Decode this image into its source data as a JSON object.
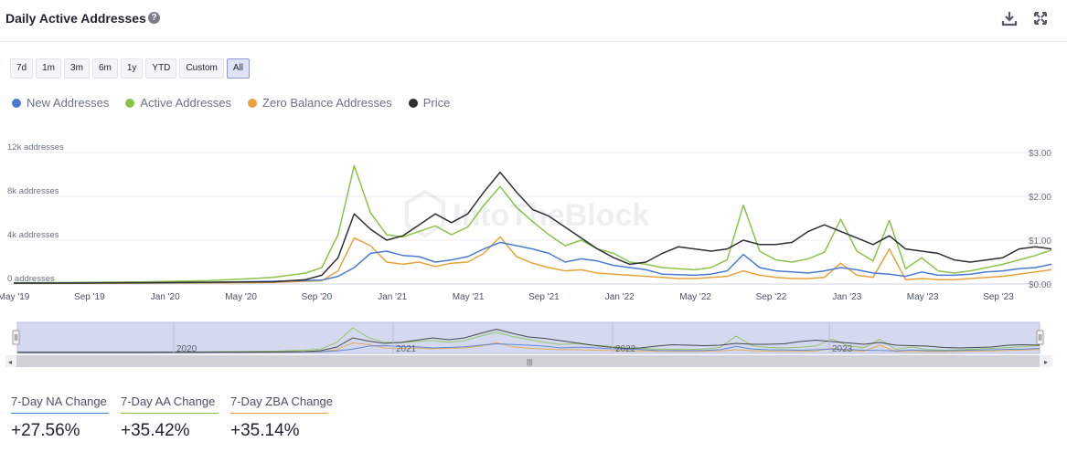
{
  "header": {
    "title": "Daily Active Addresses",
    "help_icon": "question-circle-icon",
    "download_icon": "download-icon",
    "fullscreen_icon": "expand-icon"
  },
  "range_buttons": [
    "7d",
    "1m",
    "3m",
    "6m",
    "1y",
    "YTD",
    "Custom",
    "All"
  ],
  "range_selected": "All",
  "stats": [
    {
      "label": "7-Day NA Change",
      "value": "+27.56%",
      "color": "#4a7bd4"
    },
    {
      "label": "7-Day AA Change",
      "value": "+35.42%",
      "color": "#8bc34a"
    },
    {
      "label": "7-Day ZBA Change",
      "value": "+35.14%",
      "color": "#e8a23a"
    }
  ],
  "navigator": {
    "year_labels": [
      "2020",
      "2021",
      "2022",
      "2023"
    ]
  },
  "chart_data": {
    "type": "line",
    "x_ticks": [
      "May '19",
      "Sep '19",
      "Jan '20",
      "May '20",
      "Sep '20",
      "Jan '21",
      "May '21",
      "Sep '21",
      "Jan '22",
      "May '22",
      "Sep '22",
      "Jan '23",
      "May '23",
      "Sep '23"
    ],
    "y_left": {
      "ticks": [
        "0 addresses",
        "4k addresses",
        "8k addresses",
        "12k addresses"
      ],
      "range": [
        0,
        12000
      ]
    },
    "y_right": {
      "ticks": [
        "$0.00",
        "$1.00",
        "$2.00",
        "$3.00"
      ],
      "range": [
        0,
        3
      ]
    },
    "grid": true,
    "legend_position": "top-left",
    "series": [
      {
        "name": "New Addresses",
        "color": "#4a7bd4",
        "axis": "left",
        "points": [
          [
            0,
            80
          ],
          [
            4,
            100
          ],
          [
            8,
            120
          ],
          [
            12,
            150
          ],
          [
            16,
            250
          ],
          [
            19,
            350
          ],
          [
            20,
            700
          ],
          [
            21,
            1500
          ],
          [
            22,
            2800
          ],
          [
            23,
            3000
          ],
          [
            24,
            2600
          ],
          [
            25,
            2500
          ],
          [
            26,
            2000
          ],
          [
            27,
            2200
          ],
          [
            28,
            2500
          ],
          [
            29,
            3200
          ],
          [
            30,
            3800
          ],
          [
            31,
            3500
          ],
          [
            32,
            3200
          ],
          [
            33,
            2800
          ],
          [
            34,
            2000
          ],
          [
            35,
            2300
          ],
          [
            36,
            2100
          ],
          [
            37,
            1700
          ],
          [
            38,
            1500
          ],
          [
            39,
            1300
          ],
          [
            40,
            900
          ],
          [
            41,
            850
          ],
          [
            42,
            800
          ],
          [
            43,
            900
          ],
          [
            44,
            1200
          ],
          [
            45,
            2700
          ],
          [
            46,
            1500
          ],
          [
            47,
            1200
          ],
          [
            48,
            1100
          ],
          [
            49,
            1000
          ],
          [
            50,
            1200
          ],
          [
            51,
            1500
          ],
          [
            52,
            1300
          ],
          [
            53,
            1000
          ],
          [
            54,
            900
          ],
          [
            55,
            700
          ],
          [
            56,
            1100
          ],
          [
            57,
            800
          ],
          [
            58,
            800
          ],
          [
            59,
            900
          ],
          [
            60,
            1100
          ],
          [
            61,
            1200
          ],
          [
            62,
            1400
          ],
          [
            63,
            1500
          ],
          [
            64,
            1800
          ]
        ]
      },
      {
        "name": "Active Addresses",
        "color": "#8bc34a",
        "axis": "left",
        "points": [
          [
            0,
            100
          ],
          [
            4,
            150
          ],
          [
            8,
            200
          ],
          [
            12,
            300
          ],
          [
            16,
            600
          ],
          [
            18,
            1000
          ],
          [
            19,
            1500
          ],
          [
            20,
            4500
          ],
          [
            21,
            10800
          ],
          [
            22,
            6500
          ],
          [
            23,
            4500
          ],
          [
            24,
            4300
          ],
          [
            25,
            4800
          ],
          [
            26,
            5300
          ],
          [
            27,
            4500
          ],
          [
            28,
            5200
          ],
          [
            29,
            7200
          ],
          [
            30,
            8900
          ],
          [
            31,
            7000
          ],
          [
            32,
            5700
          ],
          [
            33,
            4500
          ],
          [
            34,
            3500
          ],
          [
            35,
            4000
          ],
          [
            36,
            3200
          ],
          [
            37,
            2800
          ],
          [
            38,
            2000
          ],
          [
            39,
            1800
          ],
          [
            40,
            1500
          ],
          [
            41,
            1400
          ],
          [
            42,
            1300
          ],
          [
            43,
            1500
          ],
          [
            44,
            2200
          ],
          [
            45,
            7200
          ],
          [
            46,
            3000
          ],
          [
            47,
            2200
          ],
          [
            48,
            2000
          ],
          [
            49,
            2300
          ],
          [
            50,
            2900
          ],
          [
            51,
            5900
          ],
          [
            52,
            3000
          ],
          [
            53,
            2100
          ],
          [
            54,
            5800
          ],
          [
            55,
            1400
          ],
          [
            56,
            2400
          ],
          [
            57,
            1200
          ],
          [
            58,
            1000
          ],
          [
            59,
            1200
          ],
          [
            60,
            1500
          ],
          [
            61,
            1800
          ],
          [
            62,
            2200
          ],
          [
            63,
            2600
          ],
          [
            64,
            3100
          ]
        ]
      },
      {
        "name": "Zero Balance Addresses",
        "color": "#e8a23a",
        "axis": "left",
        "points": [
          [
            0,
            50
          ],
          [
            4,
            60
          ],
          [
            8,
            80
          ],
          [
            12,
            100
          ],
          [
            16,
            150
          ],
          [
            19,
            300
          ],
          [
            20,
            1200
          ],
          [
            21,
            4200
          ],
          [
            22,
            3500
          ],
          [
            23,
            2000
          ],
          [
            24,
            1800
          ],
          [
            25,
            2000
          ],
          [
            26,
            1600
          ],
          [
            27,
            1900
          ],
          [
            28,
            2000
          ],
          [
            29,
            2800
          ],
          [
            30,
            4300
          ],
          [
            31,
            2500
          ],
          [
            32,
            1900
          ],
          [
            33,
            1500
          ],
          [
            34,
            1200
          ],
          [
            35,
            1300
          ],
          [
            36,
            1000
          ],
          [
            37,
            900
          ],
          [
            38,
            800
          ],
          [
            39,
            700
          ],
          [
            40,
            600
          ],
          [
            41,
            500
          ],
          [
            42,
            500
          ],
          [
            43,
            600
          ],
          [
            44,
            700
          ],
          [
            45,
            1200
          ],
          [
            46,
            800
          ],
          [
            47,
            600
          ],
          [
            48,
            500
          ],
          [
            49,
            500
          ],
          [
            50,
            600
          ],
          [
            51,
            1900
          ],
          [
            52,
            800
          ],
          [
            53,
            600
          ],
          [
            54,
            3200
          ],
          [
            55,
            400
          ],
          [
            56,
            500
          ],
          [
            57,
            400
          ],
          [
            58,
            400
          ],
          [
            59,
            500
          ],
          [
            60,
            600
          ],
          [
            61,
            700
          ],
          [
            62,
            900
          ],
          [
            63,
            1100
          ],
          [
            64,
            1300
          ]
        ]
      },
      {
        "name": "Price",
        "color": "#2d2f33",
        "axis": "right",
        "points": [
          [
            0,
            0.02
          ],
          [
            4,
            0.02
          ],
          [
            8,
            0.03
          ],
          [
            12,
            0.04
          ],
          [
            16,
            0.05
          ],
          [
            18,
            0.1
          ],
          [
            19,
            0.2
          ],
          [
            20,
            0.6
          ],
          [
            21,
            1.6
          ],
          [
            22,
            1.25
          ],
          [
            23,
            1.0
          ],
          [
            24,
            1.1
          ],
          [
            25,
            1.35
          ],
          [
            26,
            1.6
          ],
          [
            27,
            1.4
          ],
          [
            28,
            1.6
          ],
          [
            29,
            2.1
          ],
          [
            30,
            2.55
          ],
          [
            31,
            2.1
          ],
          [
            32,
            1.7
          ],
          [
            33,
            1.55
          ],
          [
            34,
            1.3
          ],
          [
            35,
            1.05
          ],
          [
            36,
            0.8
          ],
          [
            37,
            0.6
          ],
          [
            38,
            0.45
          ],
          [
            39,
            0.5
          ],
          [
            40,
            0.7
          ],
          [
            41,
            0.85
          ],
          [
            42,
            0.8
          ],
          [
            43,
            0.75
          ],
          [
            44,
            0.8
          ],
          [
            45,
            1.0
          ],
          [
            46,
            0.9
          ],
          [
            47,
            0.9
          ],
          [
            48,
            0.95
          ],
          [
            49,
            1.2
          ],
          [
            50,
            1.35
          ],
          [
            51,
            1.2
          ],
          [
            52,
            1.05
          ],
          [
            53,
            0.9
          ],
          [
            54,
            1.1
          ],
          [
            55,
            0.8
          ],
          [
            56,
            0.75
          ],
          [
            57,
            0.7
          ],
          [
            58,
            0.55
          ],
          [
            59,
            0.5
          ],
          [
            60,
            0.55
          ],
          [
            61,
            0.6
          ],
          [
            62,
            0.8
          ],
          [
            63,
            0.85
          ],
          [
            64,
            0.8
          ]
        ]
      }
    ]
  }
}
